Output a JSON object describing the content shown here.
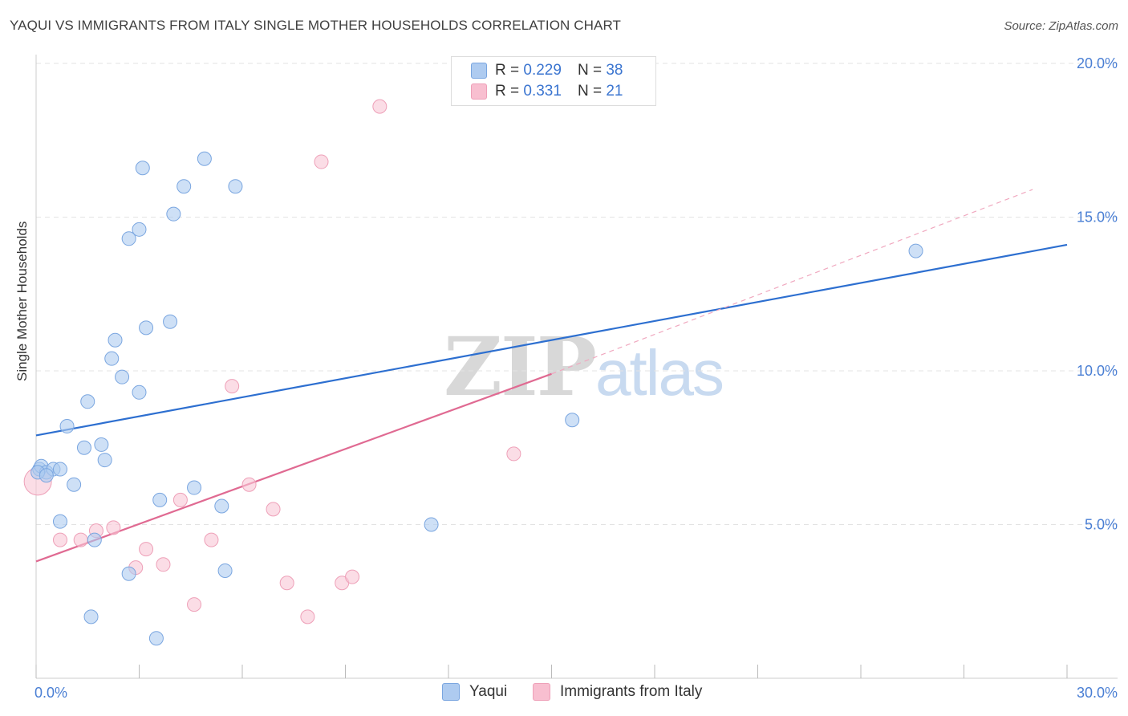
{
  "header": {
    "title": "YAQUI VS IMMIGRANTS FROM ITALY SINGLE MOTHER HOUSEHOLDS CORRELATION CHART",
    "source": "Source: ZipAtlas.com"
  },
  "watermark": {
    "zip": "ZIP",
    "atlas": "atlas"
  },
  "legend": {
    "rows": [
      {
        "r_label": "R = ",
        "r_value": "0.229",
        "n_label": "N = ",
        "n_value": "38",
        "color": "#aecbf0"
      },
      {
        "r_label": "R = ",
        "r_value": "0.331",
        "n_label": "N = ",
        "n_value": "21",
        "color": "#f8bfd0"
      }
    ]
  },
  "bottom_legend": {
    "items": [
      {
        "label": "Yaqui",
        "color": "#aecbf0"
      },
      {
        "label": "Immigrants from Italy",
        "color": "#f8bfd0"
      }
    ]
  },
  "colors": {
    "blue_fill": "#aecbf0",
    "blue_stroke": "#7aa6e0",
    "blue_line": "#2d6fd0",
    "pink_fill": "#f8c6d5",
    "pink_stroke": "#eea0b8",
    "pink_line": "#e06a92",
    "grid": "#e3e3e3",
    "tick_text": "#4a7fd4"
  },
  "chart_data": {
    "type": "scatter",
    "title": "YAQUI VS IMMIGRANTS FROM ITALY SINGLE MOTHER HOUSEHOLDS CORRELATION CHART",
    "xlabel": "",
    "ylabel": "Single Mother Households",
    "xlim": [
      0,
      30
    ],
    "ylim": [
      0,
      20
    ],
    "x_tick_labels": [
      {
        "value": 0,
        "label": "0.0%"
      },
      {
        "value": 30,
        "label": "30.0%"
      }
    ],
    "y_tick_labels": [
      {
        "value": 5,
        "label": "5.0%"
      },
      {
        "value": 10,
        "label": "10.0%"
      },
      {
        "value": 15,
        "label": "15.0%"
      },
      {
        "value": 20,
        "label": "20.0%"
      }
    ],
    "series": [
      {
        "name": "Yaqui",
        "r": 0.229,
        "n": 38,
        "trend": {
          "x": [
            0,
            30
          ],
          "y": [
            7.9,
            14.1
          ]
        },
        "points": [
          [
            0.1,
            6.8
          ],
          [
            0.15,
            6.9
          ],
          [
            0.3,
            6.7
          ],
          [
            0.5,
            6.8
          ],
          [
            0.7,
            6.8
          ],
          [
            0.9,
            8.2
          ],
          [
            1.1,
            6.3
          ],
          [
            0.7,
            5.1
          ],
          [
            1.4,
            7.5
          ],
          [
            1.5,
            9.0
          ],
          [
            1.9,
            7.6
          ],
          [
            2.0,
            7.1
          ],
          [
            2.2,
            10.4
          ],
          [
            2.3,
            11.0
          ],
          [
            2.5,
            9.8
          ],
          [
            2.7,
            3.4
          ],
          [
            2.7,
            14.3
          ],
          [
            3.0,
            14.6
          ],
          [
            3.0,
            9.3
          ],
          [
            3.1,
            16.6
          ],
          [
            3.2,
            11.4
          ],
          [
            1.7,
            4.5
          ],
          [
            3.5,
            1.3
          ],
          [
            3.6,
            5.8
          ],
          [
            3.9,
            11.6
          ],
          [
            4.0,
            15.1
          ],
          [
            4.3,
            16.0
          ],
          [
            4.6,
            6.2
          ],
          [
            4.9,
            16.9
          ],
          [
            5.4,
            5.6
          ],
          [
            5.5,
            3.5
          ],
          [
            5.8,
            16.0
          ],
          [
            1.6,
            2.0
          ],
          [
            11.5,
            5.0
          ],
          [
            15.6,
            8.4
          ],
          [
            25.6,
            13.9
          ],
          [
            0.05,
            6.7
          ],
          [
            0.3,
            6.6
          ]
        ]
      },
      {
        "name": "Immigrants from Italy",
        "r": 0.331,
        "n": 21,
        "trend_solid": {
          "x": [
            0,
            15.0
          ],
          "y": [
            3.8,
            9.9
          ]
        },
        "trend_dashed": {
          "x": [
            15.0,
            29.0
          ],
          "y": [
            9.9,
            15.9
          ]
        },
        "points": [
          [
            0.05,
            6.4
          ],
          [
            0.7,
            4.5
          ],
          [
            1.3,
            4.5
          ],
          [
            1.75,
            4.8
          ],
          [
            2.25,
            4.9
          ],
          [
            2.9,
            3.6
          ],
          [
            3.2,
            4.2
          ],
          [
            3.7,
            3.7
          ],
          [
            4.2,
            5.8
          ],
          [
            4.6,
            2.4
          ],
          [
            5.1,
            4.5
          ],
          [
            5.7,
            9.5
          ],
          [
            6.2,
            6.3
          ],
          [
            6.9,
            5.5
          ],
          [
            7.3,
            3.1
          ],
          [
            7.9,
            2.0
          ],
          [
            8.3,
            16.8
          ],
          [
            8.9,
            3.1
          ],
          [
            9.2,
            3.3
          ],
          [
            10.0,
            18.6
          ],
          [
            13.9,
            7.3
          ]
        ]
      }
    ]
  }
}
